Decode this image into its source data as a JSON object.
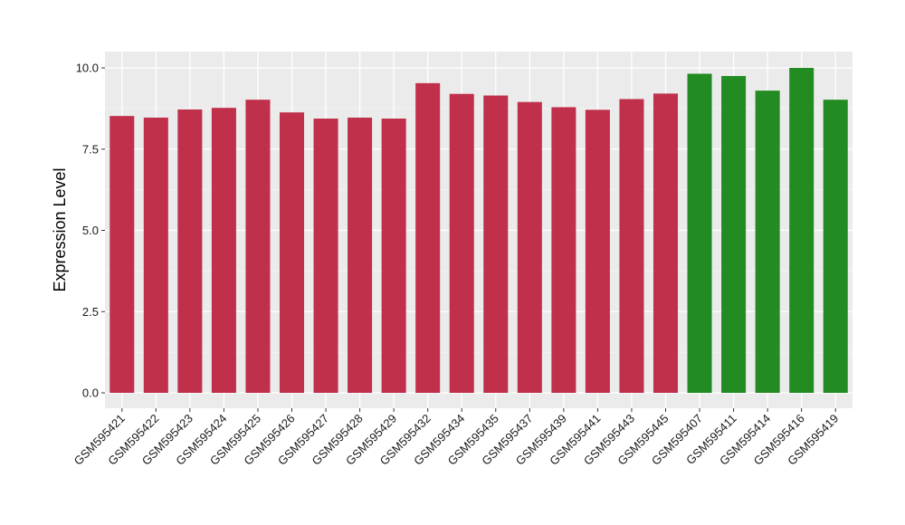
{
  "chart_data": {
    "type": "bar",
    "title": "",
    "xlabel": "",
    "ylabel": "Expression Level",
    "ylim": [
      0,
      10.5
    ],
    "yticks": [
      0,
      2.5,
      5,
      7.5,
      10
    ],
    "ytick_labels": [
      "0.0",
      "2.5",
      "5.0",
      "7.5",
      "10.0"
    ],
    "grid": true,
    "categories": [
      "GSM595421",
      "GSM595422",
      "GSM595423",
      "GSM595424",
      "GSM595425",
      "GSM595426",
      "GSM595427",
      "GSM595428",
      "GSM595429",
      "GSM595432",
      "GSM595434",
      "GSM595435",
      "GSM595437",
      "GSM595439",
      "GSM595441",
      "GSM595443",
      "GSM595445",
      "GSM595407",
      "GSM595411",
      "GSM595414",
      "GSM595416",
      "GSM595419"
    ],
    "values": [
      8.52,
      8.47,
      8.72,
      8.77,
      9.02,
      8.63,
      8.44,
      8.47,
      8.44,
      9.53,
      9.2,
      9.15,
      8.95,
      8.79,
      8.71,
      9.04,
      9.21,
      9.82,
      9.75,
      9.3,
      10.0,
      9.02
    ],
    "groups": [
      "red",
      "red",
      "red",
      "red",
      "red",
      "red",
      "red",
      "red",
      "red",
      "red",
      "red",
      "red",
      "red",
      "red",
      "red",
      "red",
      "red",
      "green",
      "green",
      "green",
      "green",
      "green"
    ],
    "colors": {
      "red": "#C0304A",
      "green": "#228B22",
      "panel": "#EBEBEB",
      "grid": "#FFFFFF"
    }
  }
}
